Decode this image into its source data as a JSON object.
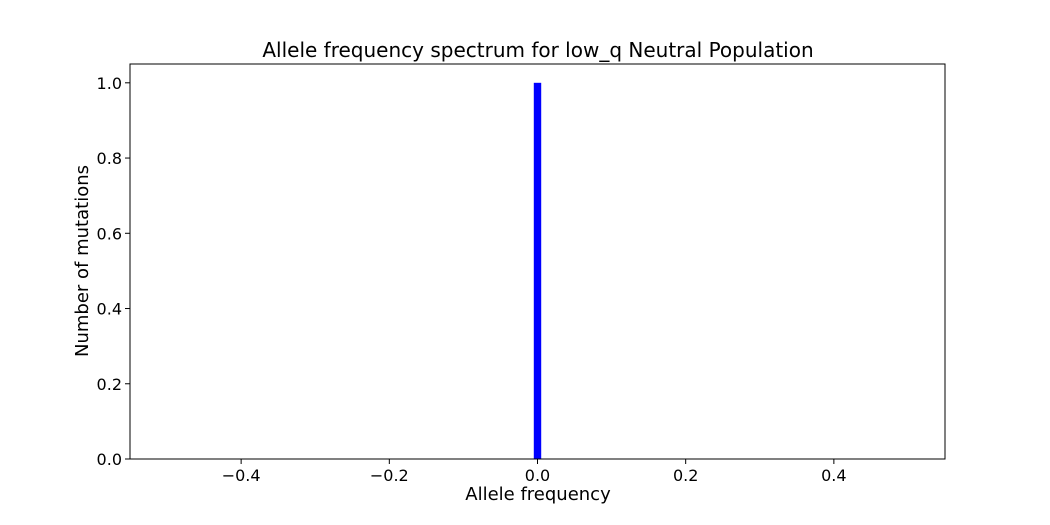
{
  "chart_data": {
    "type": "bar",
    "title": "Allele frequency spectrum for low_q Neutral Population",
    "xlabel": "Allele frequency",
    "ylabel": "Number of mutations",
    "xlim": [
      -0.55,
      0.55
    ],
    "ylim": [
      0.0,
      1.05
    ],
    "bar_width": 0.01,
    "bars": [
      {
        "x": 0.0,
        "value": 1.0
      }
    ],
    "x_ticks": [
      {
        "value": -0.4,
        "label": "−0.4"
      },
      {
        "value": -0.2,
        "label": "−0.2"
      },
      {
        "value": 0.0,
        "label": "0.0"
      },
      {
        "value": 0.2,
        "label": "0.2"
      },
      {
        "value": 0.4,
        "label": "0.4"
      }
    ],
    "y_ticks": [
      {
        "value": 0.0,
        "label": "0.0"
      },
      {
        "value": 0.2,
        "label": "0.2"
      },
      {
        "value": 0.4,
        "label": "0.4"
      },
      {
        "value": 0.6,
        "label": "0.6"
      },
      {
        "value": 0.8,
        "label": "0.8"
      },
      {
        "value": 1.0,
        "label": "1.0"
      }
    ],
    "grid": false,
    "bar_color": "#0000ff"
  }
}
